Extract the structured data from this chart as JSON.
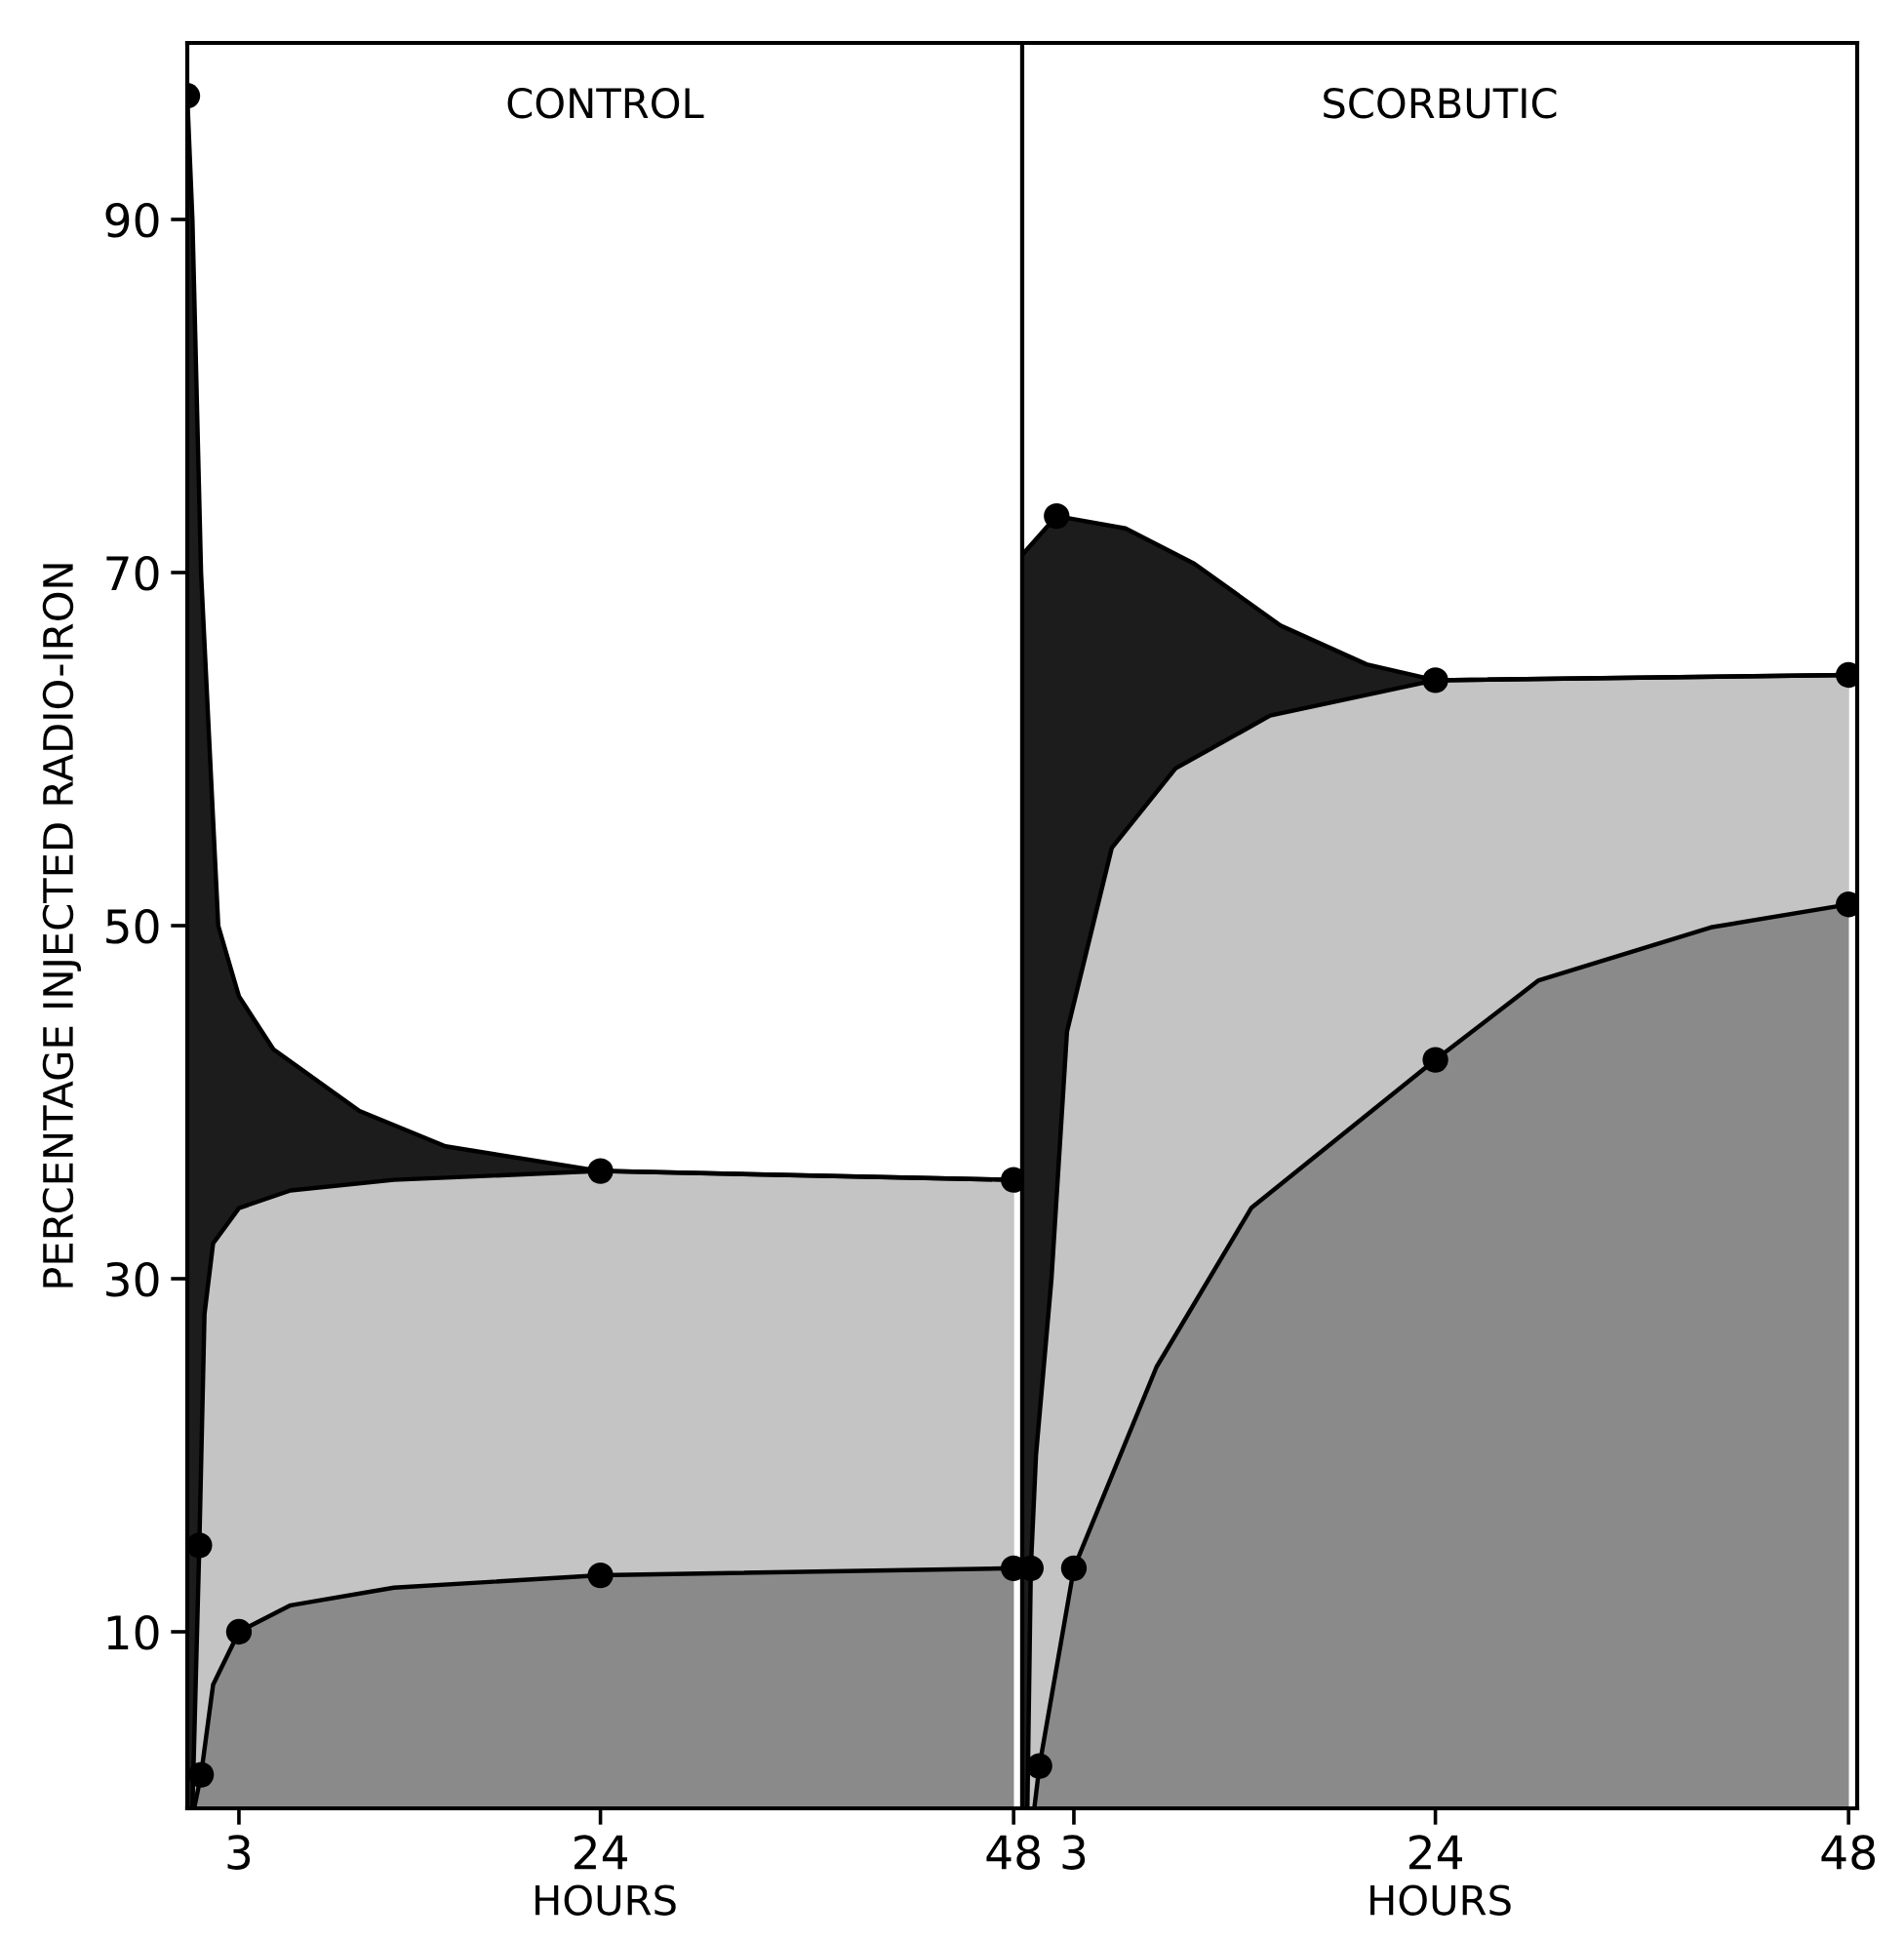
{
  "chart_data": [
    {
      "type": "area",
      "title": "CONTROL",
      "xlabel": "HOURS",
      "ylabel": "PERCENTAGE INJECTED RADIO-IRON",
      "xlim": [
        0,
        48.5
      ],
      "xticks": [
        3,
        24,
        48
      ],
      "ylim": [
        0,
        100
      ],
      "yticks": [
        10,
        30,
        50,
        70,
        90
      ],
      "grid": false,
      "marker": "none",
      "series": [
        {
          "color": "#1c1c1c",
          "x": [
            0,
            0.3,
            0.8,
            1.8,
            3,
            5,
            10,
            15,
            24,
            48
          ],
          "values": [
            97,
            90,
            70,
            50,
            46,
            43,
            39.5,
            37.5,
            36.1,
            35.6
          ]
        },
        {
          "color": "#c4c4c4",
          "x": [
            0.3,
            0.7,
            1,
            1.5,
            3,
            6,
            12,
            24,
            48
          ],
          "values": [
            0,
            14.9,
            28,
            32,
            34,
            35,
            35.6,
            36.1,
            35.6
          ]
        },
        {
          "color": "#8a8a8a",
          "x": [
            0.4,
            0.8,
            1.5,
            3,
            6,
            12,
            24,
            48
          ],
          "values": [
            0,
            1.9,
            7,
            10,
            11.5,
            12.5,
            13.2,
            13.6
          ]
        },
        {
          "type": "scatter",
          "color": "#000000",
          "marker": "circle",
          "x": [
            0,
            24,
            48,
            0.7,
            0.8,
            3,
            24,
            48
          ],
          "values": [
            97,
            36.1,
            35.6,
            14.9,
            1.9,
            10,
            13.2,
            13.6
          ]
        }
      ]
    },
    {
      "type": "area",
      "title": "SCORBUTIC",
      "xlabel": "HOURS",
      "xlim": [
        0,
        48.5
      ],
      "xticks": [
        3,
        24,
        48
      ],
      "ylim": [
        0,
        100
      ],
      "tick_labels": "x",
      "grid": false,
      "marker": "none",
      "series": [
        {
          "color": "#1c1c1c",
          "x": [
            0,
            2,
            6,
            10,
            15,
            20,
            24,
            48
          ],
          "values": [
            71,
            73.2,
            72.5,
            70.5,
            67,
            64.8,
            63.9,
            64.2
          ]
        },
        {
          "color": "#c4c4c4",
          "x": [
            0.3,
            0.5,
            0.8,
            1.7,
            2.6,
            5.2,
            8.9,
            14.4,
            24,
            48
          ],
          "values": [
            0,
            13.6,
            20,
            30,
            44,
            54.4,
            58.9,
            61.9,
            63.9,
            64.2
          ]
        },
        {
          "color": "#8a8a8a",
          "x": [
            0.7,
            1,
            3,
            7.8,
            13.3,
            24,
            30,
            40,
            48
          ],
          "values": [
            0,
            2.4,
            13.6,
            25,
            34,
            42.4,
            46.9,
            49.9,
            51.2
          ]
        },
        {
          "type": "scatter",
          "color": "#000000",
          "marker": "circle",
          "x": [
            2,
            24,
            48,
            0.5,
            1,
            3,
            24,
            48
          ],
          "values": [
            73.2,
            63.9,
            64.2,
            13.6,
            2.4,
            13.6,
            42.4,
            51.2
          ]
        }
      ]
    }
  ]
}
